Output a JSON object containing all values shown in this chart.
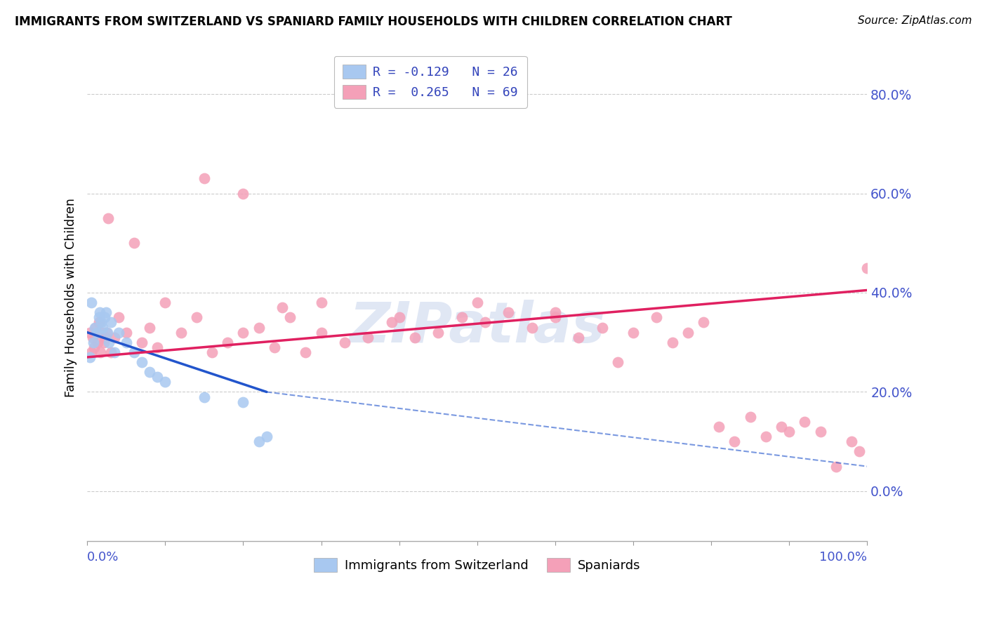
{
  "title": "IMMIGRANTS FROM SWITZERLAND VS SPANIARD FAMILY HOUSEHOLDS WITH CHILDREN CORRELATION CHART",
  "source": "Source: ZipAtlas.com",
  "ylabel": "Family Households with Children",
  "ytick_labels": [
    "0.0%",
    "20.0%",
    "40.0%",
    "60.0%",
    "80.0%"
  ],
  "ytick_values": [
    0,
    20,
    40,
    60,
    80
  ],
  "xlim": [
    0,
    100
  ],
  "ylim": [
    -10,
    88
  ],
  "legend_blue_label": "R = -0.129   N = 26",
  "legend_pink_label": "R =  0.265   N = 69",
  "legend_bottom_blue": "Immigrants from Switzerland",
  "legend_bottom_pink": "Spaniards",
  "blue_color": "#a8c8f0",
  "pink_color": "#f4a0b8",
  "blue_line_color": "#2255cc",
  "pink_line_color": "#e02060",
  "blue_scatter_x": [
    0.3,
    0.5,
    0.8,
    1.0,
    1.2,
    1.5,
    1.6,
    1.8,
    2.0,
    2.2,
    2.4,
    2.6,
    2.8,
    3.0,
    3.5,
    4.0,
    5.0,
    6.0,
    7.0,
    8.0,
    9.0,
    10.0,
    15.0,
    20.0,
    22.0,
    23.0
  ],
  "blue_scatter_y": [
    27,
    38,
    30,
    33,
    32,
    35,
    36,
    34,
    33,
    35,
    36,
    32,
    30,
    34,
    28,
    32,
    30,
    28,
    26,
    24,
    23,
    22,
    19,
    18,
    10,
    11
  ],
  "pink_scatter_x": [
    0.3,
    0.5,
    0.7,
    0.9,
    1.1,
    1.3,
    1.5,
    1.7,
    1.9,
    2.1,
    2.3,
    2.5,
    2.7,
    3.0,
    3.5,
    4.0,
    5.0,
    6.0,
    7.0,
    8.0,
    9.0,
    10.0,
    12.0,
    14.0,
    16.0,
    18.0,
    20.0,
    22.0,
    24.0,
    26.0,
    28.0,
    30.0,
    33.0,
    36.0,
    39.0,
    42.0,
    45.0,
    48.0,
    51.0,
    54.0,
    57.0,
    60.0,
    63.0,
    66.0,
    68.0,
    70.0,
    73.0,
    75.0,
    77.0,
    79.0,
    81.0,
    83.0,
    85.0,
    87.0,
    89.0,
    90.0,
    92.0,
    94.0,
    96.0,
    98.0,
    99.0,
    100.0,
    15.0,
    20.0,
    25.0,
    30.0,
    40.0,
    50.0,
    60.0
  ],
  "pink_scatter_y": [
    32,
    28,
    31,
    29,
    33,
    30,
    34,
    28,
    32,
    30,
    31,
    32,
    55,
    28,
    31,
    35,
    32,
    50,
    30,
    33,
    29,
    38,
    32,
    35,
    28,
    30,
    32,
    33,
    29,
    35,
    28,
    32,
    30,
    31,
    34,
    31,
    32,
    35,
    34,
    36,
    33,
    35,
    31,
    33,
    26,
    32,
    35,
    30,
    32,
    34,
    13,
    10,
    15,
    11,
    13,
    12,
    14,
    12,
    5,
    10,
    8,
    45,
    63,
    60,
    37,
    38,
    35,
    38,
    36
  ],
  "blue_line_start_x": 0.0,
  "blue_line_start_y": 32.0,
  "blue_line_end_x": 23.0,
  "blue_line_end_y": 20.0,
  "blue_dash_end_x": 100.0,
  "blue_dash_end_y": 5.0,
  "pink_line_start_x": 0.0,
  "pink_line_start_y": 27.0,
  "pink_line_end_x": 100.0,
  "pink_line_end_y": 40.5
}
